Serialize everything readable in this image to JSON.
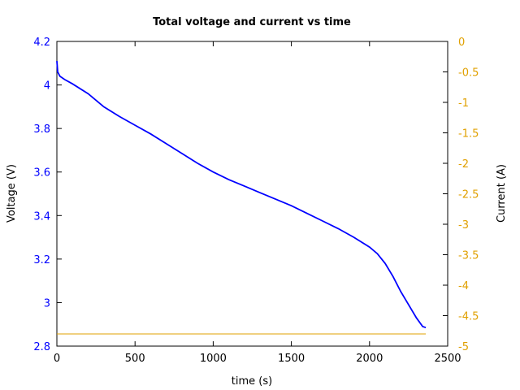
{
  "chart_data": {
    "type": "line",
    "title": "Total voltage and current vs time",
    "xlabel": "time (s)",
    "ylabel": "Voltage (V)",
    "y2label": "Current (A)",
    "xlim": [
      0,
      2500
    ],
    "ylim": [
      2.8,
      4.2
    ],
    "y2lim": [
      -5,
      0
    ],
    "xticks": [
      0,
      500,
      1000,
      1500,
      2000,
      2500
    ],
    "yticks": [
      2.8,
      3,
      3.2,
      3.4,
      3.6,
      3.8,
      4,
      4.2
    ],
    "y2ticks": [
      0,
      -0.5,
      -1,
      -1.5,
      -2,
      -2.5,
      -3,
      -3.5,
      -4,
      -4.5,
      -5
    ],
    "grid": false,
    "series": [
      {
        "name": "Voltage",
        "axis": "left",
        "color": "#0000ff",
        "x": [
          0,
          5,
          20,
          50,
          100,
          200,
          300,
          400,
          500,
          600,
          700,
          800,
          900,
          1000,
          1100,
          1200,
          1300,
          1400,
          1500,
          1600,
          1700,
          1800,
          1900,
          2000,
          2050,
          2100,
          2150,
          2200,
          2250,
          2300,
          2340,
          2360
        ],
        "values": [
          4.11,
          4.06,
          4.04,
          4.025,
          4.005,
          3.96,
          3.9,
          3.855,
          3.815,
          3.775,
          3.73,
          3.685,
          3.64,
          3.6,
          3.565,
          3.535,
          3.505,
          3.475,
          3.445,
          3.41,
          3.375,
          3.34,
          3.3,
          3.255,
          3.225,
          3.18,
          3.12,
          3.05,
          2.99,
          2.93,
          2.89,
          2.885
        ]
      },
      {
        "name": "Current",
        "axis": "right",
        "color": "#e0a000",
        "x": [
          0,
          2360
        ],
        "values": [
          -4.8,
          -4.8
        ]
      }
    ]
  }
}
